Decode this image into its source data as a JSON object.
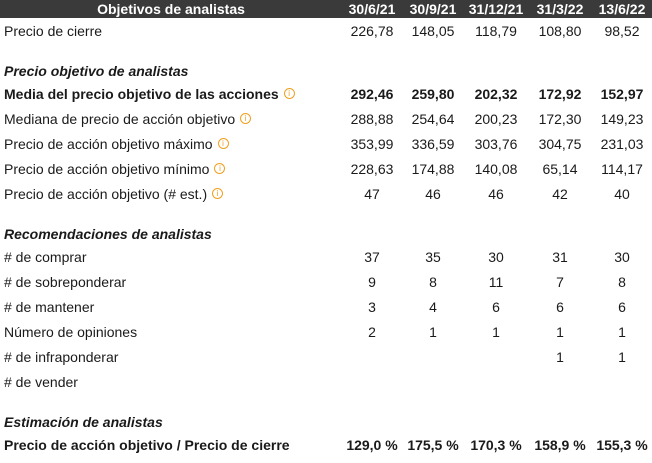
{
  "header": {
    "title": "Objetivos de analistas",
    "dates": [
      "30/6/21",
      "30/9/21",
      "31/12/21",
      "31/3/22",
      "13/6/22"
    ]
  },
  "close_price": {
    "label": "Precio de cierre",
    "values": [
      "226,78",
      "148,05",
      "118,79",
      "108,80",
      "98,52"
    ]
  },
  "section_target": {
    "title": "Precio objetivo de analistas",
    "rows": [
      {
        "label": "Media del precio objetivo de las acciones",
        "values": [
          "292,46",
          "259,80",
          "202,32",
          "172,92",
          "152,97"
        ]
      },
      {
        "label": "Mediana de precio de acción objetivo",
        "values": [
          "288,88",
          "254,64",
          "200,23",
          "172,30",
          "149,23"
        ]
      },
      {
        "label": "Precio de acción objetivo máximo",
        "values": [
          "353,99",
          "336,59",
          "303,76",
          "304,75",
          "231,03"
        ]
      },
      {
        "label": "Precio de acción objetivo mínimo",
        "values": [
          "228,63",
          "174,88",
          "140,08",
          "65,14",
          "114,17"
        ]
      },
      {
        "label": "Precio de acción objetivo (# est.)",
        "values": [
          "47",
          "46",
          "46",
          "42",
          "40"
        ]
      }
    ]
  },
  "section_recommendations": {
    "title": "Recomendaciones de analistas",
    "rows": [
      {
        "label": "# de comprar",
        "values": [
          "37",
          "35",
          "30",
          "31",
          "30"
        ]
      },
      {
        "label": "# de sobreponderar",
        "values": [
          "9",
          "8",
          "11",
          "7",
          "8"
        ]
      },
      {
        "label": "# de mantener",
        "values": [
          "3",
          "4",
          "6",
          "6",
          "6"
        ]
      },
      {
        "label": "Número de opiniones",
        "values": [
          "2",
          "1",
          "1",
          "1",
          "1"
        ]
      },
      {
        "label": "# de infraponderar",
        "values": [
          "",
          "",
          "",
          "1",
          "1"
        ]
      },
      {
        "label": "# de vender",
        "values": [
          "",
          "",
          "",
          "",
          ""
        ]
      }
    ]
  },
  "section_estimate": {
    "title": "Estimación de analistas",
    "rows": [
      {
        "label": "Precio de acción objetivo / Precio de cierre",
        "values": [
          "129,0 %",
          "175,5 %",
          "170,3 %",
          "158,9 %",
          "155,3 %"
        ]
      }
    ]
  },
  "icons": {
    "info": "info-icon",
    "info_color": "#f0a020"
  },
  "colors": {
    "header_bg": "#3a3a3a",
    "header_text": "#ffffff"
  }
}
